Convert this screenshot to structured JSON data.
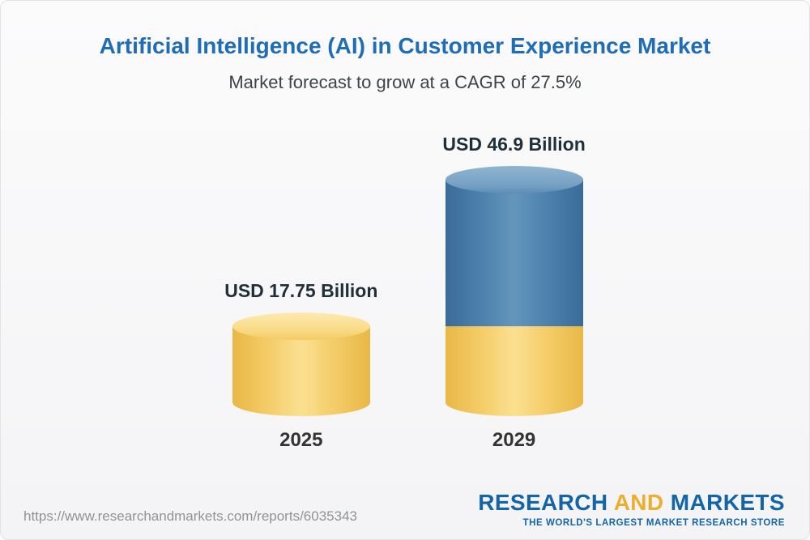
{
  "chart_data": {
    "type": "bar",
    "subtype": "3d-cylinder-stacked",
    "title": "Artificial Intelligence (AI) in Customer Experience Market",
    "subtitle": "Market forecast to grow at a CAGR of 27.5%",
    "cagr_percent": 27.5,
    "unit": "USD Billion",
    "categories": [
      "2025",
      "2029"
    ],
    "values": [
      17.75,
      46.9
    ],
    "value_labels": [
      "USD 17.75 Billion",
      "USD 46.9 Billion"
    ],
    "ylim": [
      0,
      46.9
    ],
    "legend": "none",
    "grid": false,
    "layout_hint": "2029 bar repeats the 2025 value as a yellow base segment with a blue growth segment above it"
  },
  "footer": {
    "url": "https://www.researchandmarkets.com/reports/6035343",
    "logo": {
      "research": "RESEARCH",
      "and": "AND",
      "markets": "MARKETS",
      "tagline": "THE WORLD'S LARGEST MARKET RESEARCH STORE"
    }
  },
  "colors": {
    "title_blue": "#1e6db6",
    "text_dark": "#20303a",
    "bar_yellow": "#f5ce6b",
    "bar_blue": "#4f83ae",
    "logo_blue": "#1365a7",
    "logo_gold": "#eeae2d",
    "url_gray": "#8f9396"
  }
}
